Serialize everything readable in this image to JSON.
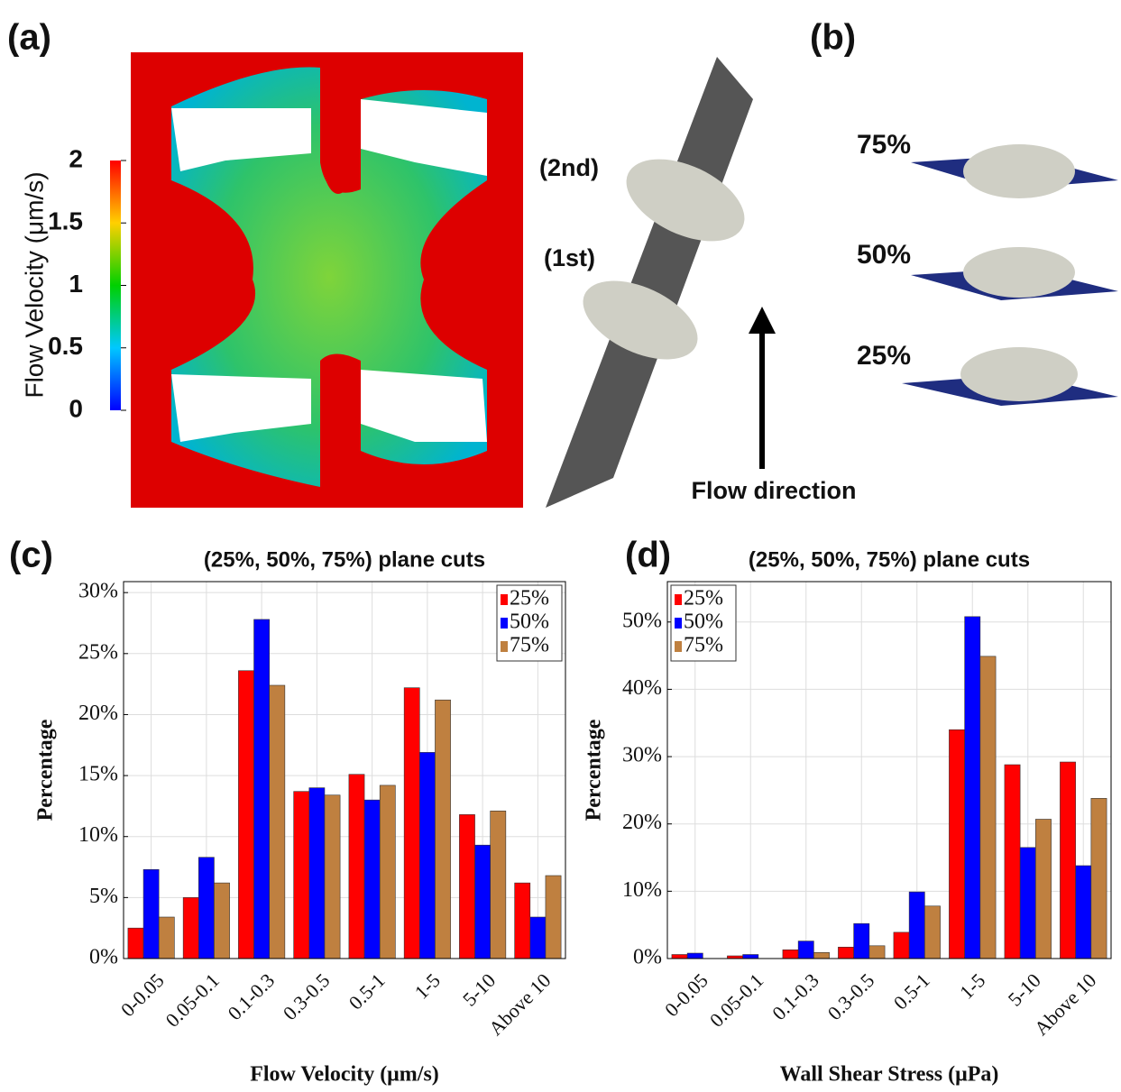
{
  "panels": {
    "a": {
      "label": "(a)",
      "colorbar": {
        "label": "Flow Velocity (μm/s)",
        "lim": [
          0,
          2
        ],
        "ticks": [
          0,
          0.5,
          1,
          1.5,
          2
        ]
      },
      "annotations": [
        "(2nd)",
        "(1st)",
        "Flow direction"
      ]
    },
    "b": {
      "label": "(b)",
      "planes": [
        "75%",
        "50%",
        "25%"
      ]
    }
  },
  "chart_data": [
    {
      "type": "bar",
      "panel_label": "(c)",
      "title": "(25%, 50%, 75%) plane cuts",
      "x_label": "Flow Velocity (μm/s)",
      "y_label": "Percentage",
      "categories": [
        "0-0.05",
        "0.05-0.1",
        "0.1-0.3",
        "0.3-0.5",
        "0.5-1",
        "1-5",
        "5-10",
        "Above 10"
      ],
      "series": [
        {
          "name": "25%",
          "color": "#ff0000",
          "values": [
            2.5,
            5.0,
            23.6,
            13.7,
            15.1,
            22.2,
            11.8,
            6.2
          ]
        },
        {
          "name": "50%",
          "color": "#0000ff",
          "values": [
            7.3,
            8.3,
            27.8,
            14.0,
            13.0,
            16.9,
            9.3,
            3.4
          ]
        },
        {
          "name": "75%",
          "color": "#bf8040",
          "values": [
            3.4,
            6.2,
            22.4,
            13.4,
            14.2,
            21.2,
            12.1,
            6.8
          ]
        }
      ],
      "ylim": [
        0,
        30.9
      ],
      "yticks": [
        {
          "value": 0,
          "label": "0%"
        },
        {
          "value": 5,
          "label": "5%"
        },
        {
          "value": 10,
          "label": "10%"
        },
        {
          "value": 15,
          "label": "15%"
        },
        {
          "value": 20,
          "label": "20%"
        },
        {
          "value": 25,
          "label": "25%"
        },
        {
          "value": 30,
          "label": "30%"
        }
      ],
      "grid": true,
      "legend": "top-right"
    },
    {
      "type": "bar",
      "panel_label": "(d)",
      "title": "(25%, 50%, 75%) plane cuts",
      "x_label": "Wall Shear Stress (μPa)",
      "y_label": "Percentage",
      "categories": [
        "0-0.05",
        "0.05-0.1",
        "0.1-0.3",
        "0.3-0.5",
        "0.5-1",
        "1-5",
        "5-10",
        "Above 10"
      ],
      "series": [
        {
          "name": "25%",
          "color": "#ff0000",
          "values": [
            0.6,
            0.4,
            1.3,
            1.7,
            3.9,
            34.0,
            28.8,
            29.2
          ]
        },
        {
          "name": "50%",
          "color": "#0000ff",
          "values": [
            0.8,
            0.6,
            2.6,
            5.2,
            9.9,
            50.8,
            16.5,
            13.8
          ]
        },
        {
          "name": "75%",
          "color": "#bf8040",
          "values": [
            0,
            0,
            0.9,
            1.9,
            7.8,
            44.9,
            20.7,
            23.8
          ]
        }
      ],
      "ylim": [
        0,
        56
      ],
      "yticks": [
        {
          "value": 0,
          "label": "0%"
        },
        {
          "value": 10,
          "label": "10%"
        },
        {
          "value": 20,
          "label": "20%"
        },
        {
          "value": 30,
          "label": "30%"
        },
        {
          "value": 40,
          "label": "40%"
        },
        {
          "value": 50,
          "label": "50%"
        }
      ],
      "grid": true,
      "legend": "top-left"
    }
  ]
}
